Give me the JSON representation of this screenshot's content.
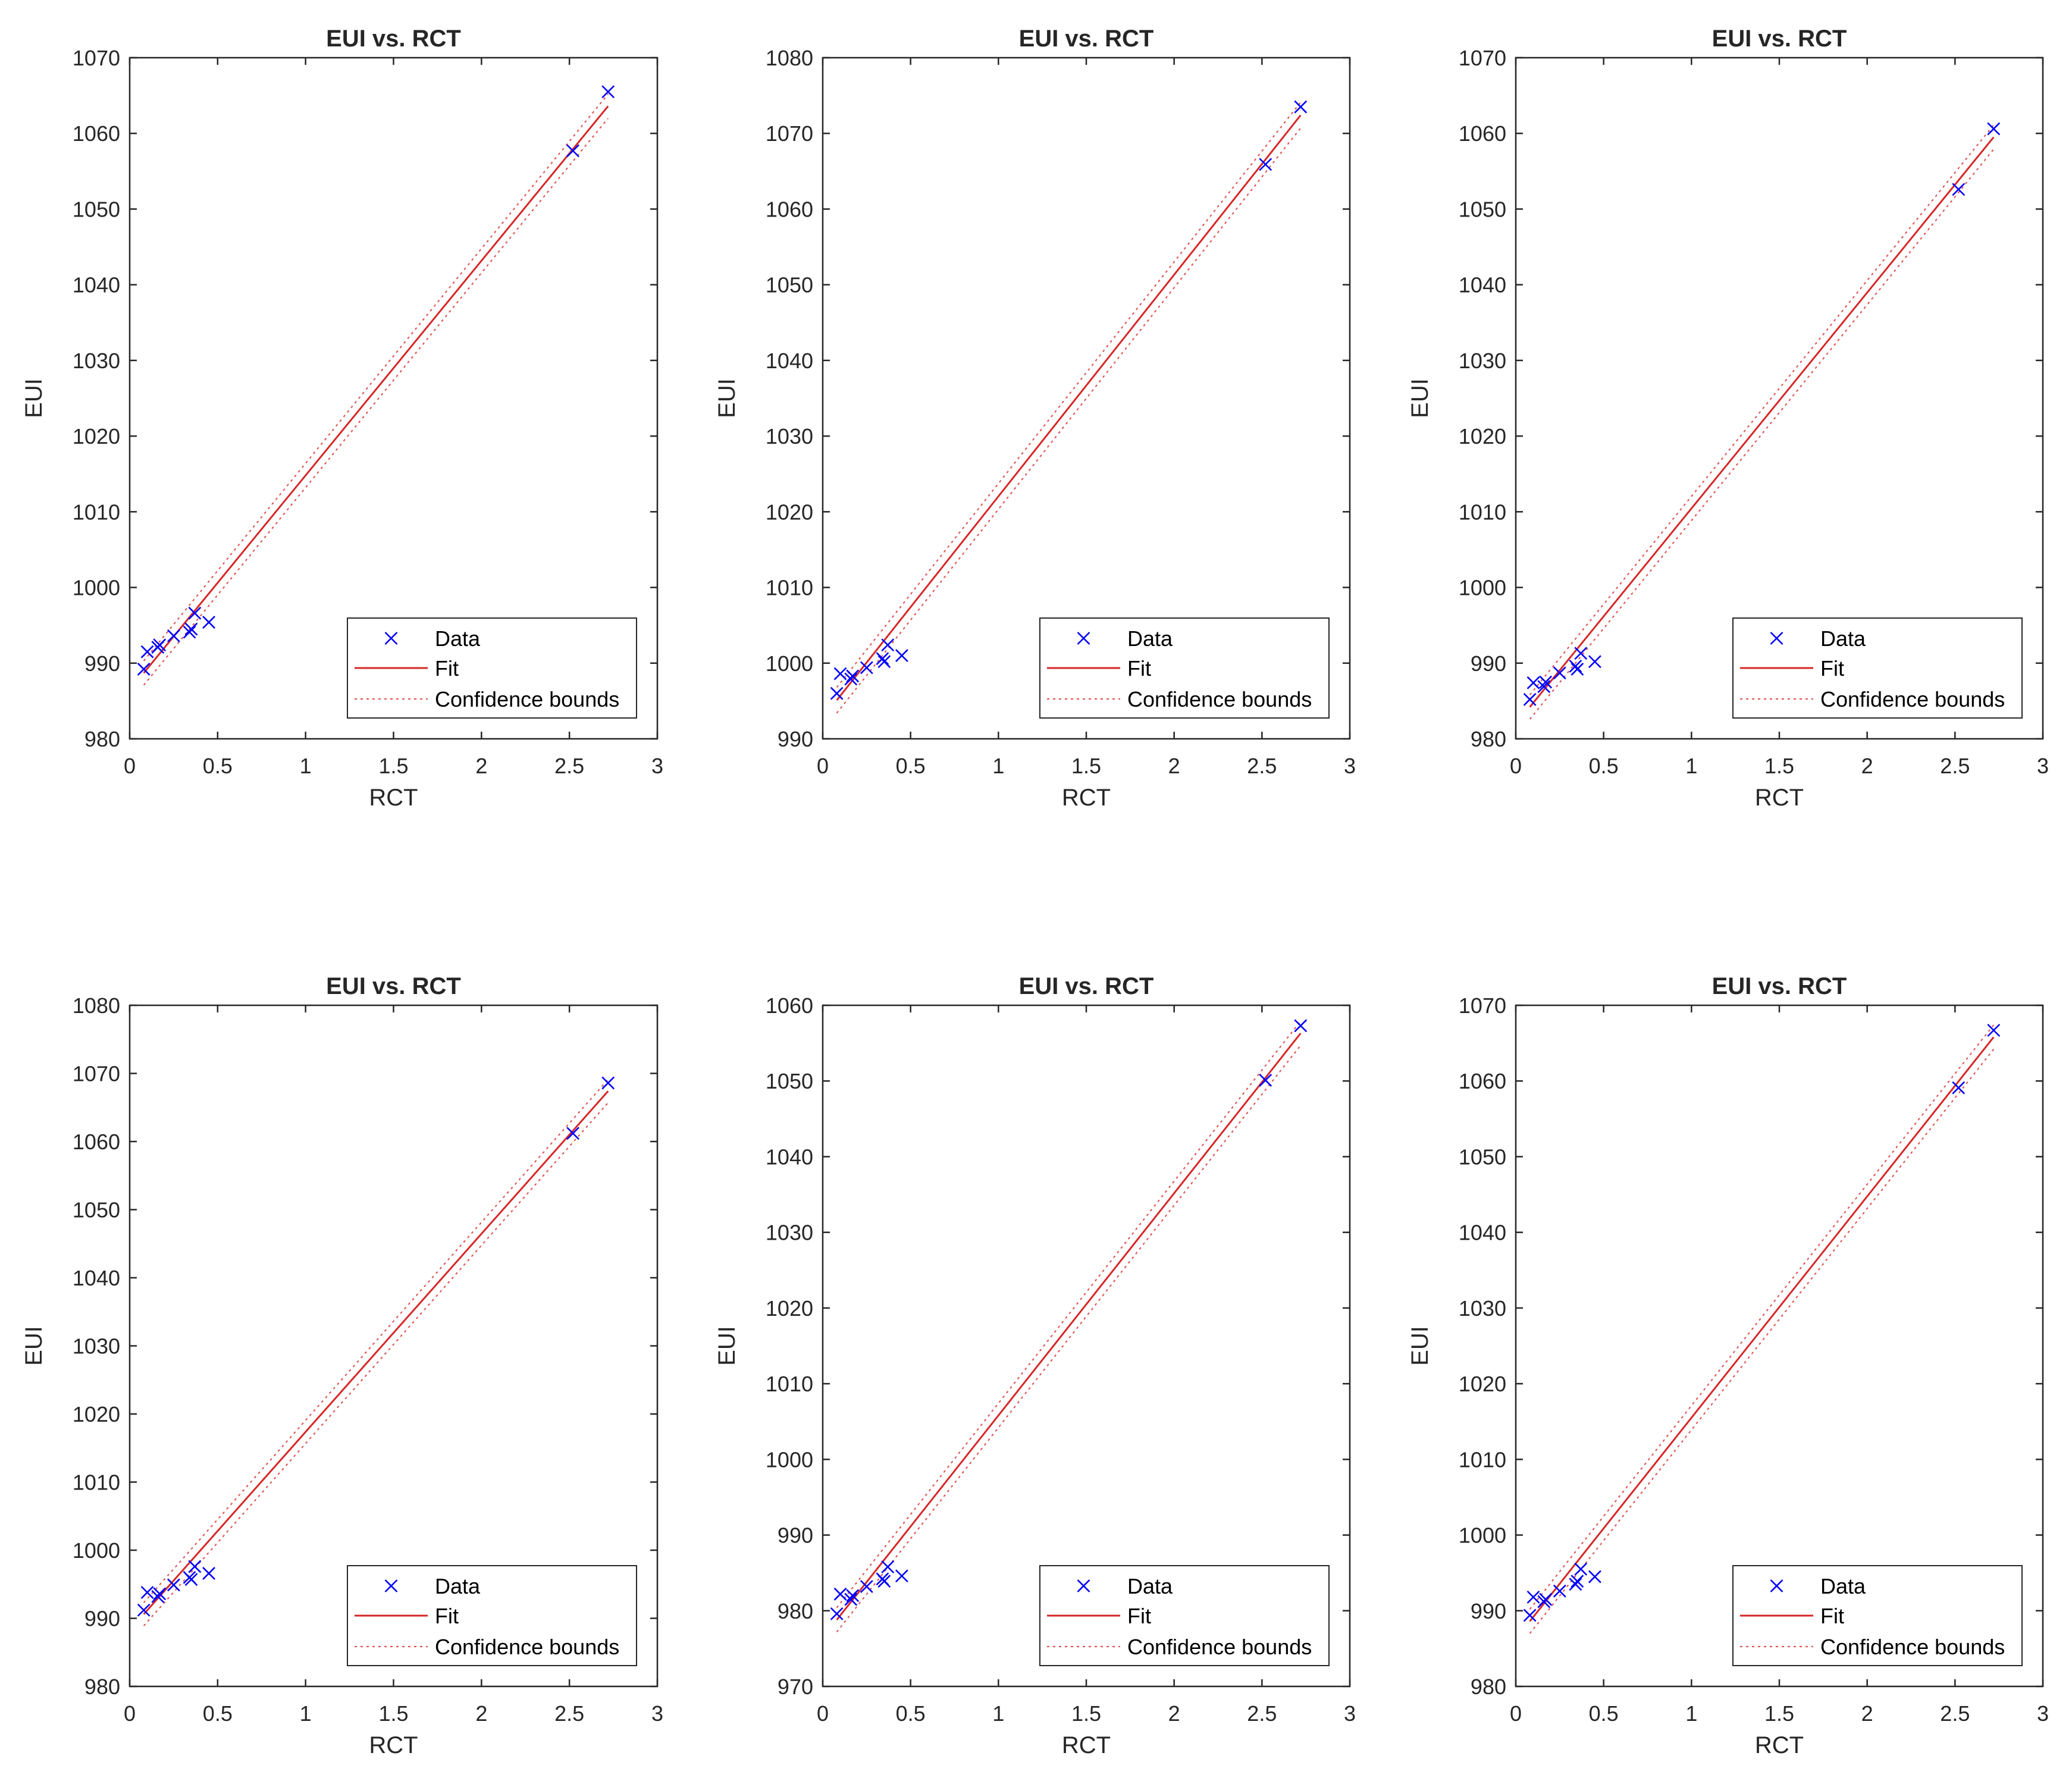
{
  "colors": {
    "data": "#0000ff",
    "fit": "#d62728",
    "bounds": "#e05555",
    "axis": "#262626",
    "background": "#ffffff"
  },
  "chart_data": [
    {
      "type": "scatter",
      "title": "EUI vs. RCT",
      "xlabel": "RCT",
      "ylabel": "EUI",
      "xlim": [
        0,
        3
      ],
      "ylim": [
        980,
        1070
      ],
      "xticks": [
        0,
        0.5,
        1,
        1.5,
        2,
        2.5,
        3
      ],
      "xtick_labels": [
        "0",
        "0.5",
        "1",
        "1.5",
        "2",
        "2.5",
        "3"
      ],
      "yticks": [
        980,
        990,
        1000,
        1010,
        1020,
        1030,
        1040,
        1050,
        1060,
        1070
      ],
      "ytick_labels": [
        "980",
        "990",
        "1000",
        "1010",
        "1020",
        "1030",
        "1040",
        "1050",
        "1060",
        "1070"
      ],
      "legend": [
        "Data",
        "Fit",
        "Confidence bounds"
      ],
      "legend_location": "bottom-right",
      "series": [
        {
          "name": "Data",
          "x": [
            0.08,
            0.1,
            0.16,
            0.17,
            0.25,
            0.34,
            0.35,
            0.37,
            0.45,
            2.52,
            2.72
          ],
          "y": [
            989.2,
            991.5,
            992.1,
            992.4,
            993.6,
            994.1,
            994.5,
            996.6,
            995.4,
            1057.7,
            1065.5
          ]
        },
        {
          "name": "Fit",
          "x": [
            0.08,
            2.72
          ],
          "y": [
            988.7,
            1063.6
          ]
        },
        {
          "name": "Confidence bounds upper",
          "x": [
            0.08,
            2.72
          ],
          "y": [
            990.3,
            1065.2
          ]
        },
        {
          "name": "Confidence bounds lower",
          "x": [
            0.08,
            2.72
          ],
          "y": [
            987.1,
            1062.0
          ]
        }
      ]
    },
    {
      "type": "scatter",
      "title": "EUI vs. RCT",
      "xlabel": "RCT",
      "ylabel": "EUI",
      "xlim": [
        0,
        3
      ],
      "ylim": [
        990,
        1080
      ],
      "xticks": [
        0,
        0.5,
        1,
        1.5,
        2,
        2.5,
        3
      ],
      "xtick_labels": [
        "0",
        "0.5",
        "1",
        "1.5",
        "2",
        "2.5",
        "3"
      ],
      "yticks": [
        990,
        1000,
        1010,
        1020,
        1030,
        1040,
        1050,
        1060,
        1070,
        1080
      ],
      "ytick_labels": [
        "990",
        "1000",
        "1010",
        "1020",
        "1030",
        "1040",
        "1050",
        "1060",
        "1070",
        "1080"
      ],
      "legend": [
        "Data",
        "Fit",
        "Confidence bounds"
      ],
      "legend_location": "bottom-right",
      "series": [
        {
          "name": "Data",
          "x": [
            0.08,
            0.1,
            0.16,
            0.17,
            0.25,
            0.34,
            0.35,
            0.37,
            0.45,
            2.52,
            2.72
          ],
          "y": [
            996.0,
            998.6,
            997.9,
            998.3,
            999.4,
            1000.6,
            1000.2,
            1002.4,
            1001.0,
            1065.9,
            1073.5
          ]
        },
        {
          "name": "Fit",
          "x": [
            0.08,
            2.72
          ],
          "y": [
            995.1,
            1072.4
          ]
        },
        {
          "name": "Confidence bounds upper",
          "x": [
            0.08,
            2.72
          ],
          "y": [
            996.8,
            1074.1
          ]
        },
        {
          "name": "Confidence bounds lower",
          "x": [
            0.08,
            2.72
          ],
          "y": [
            993.4,
            1070.7
          ]
        }
      ]
    },
    {
      "type": "scatter",
      "title": "EUI vs. RCT",
      "xlabel": "RCT",
      "ylabel": "EUI",
      "xlim": [
        0,
        3
      ],
      "ylim": [
        980,
        1070
      ],
      "xticks": [
        0,
        0.5,
        1,
        1.5,
        2,
        2.5,
        3
      ],
      "xtick_labels": [
        "0",
        "0.5",
        "1",
        "1.5",
        "2",
        "2.5",
        "3"
      ],
      "yticks": [
        980,
        990,
        1000,
        1010,
        1020,
        1030,
        1040,
        1050,
        1060,
        1070
      ],
      "ytick_labels": [
        "980",
        "990",
        "1000",
        "1010",
        "1020",
        "1030",
        "1040",
        "1050",
        "1060",
        "1070"
      ],
      "legend": [
        "Data",
        "Fit",
        "Confidence bounds"
      ],
      "legend_location": "bottom-right",
      "series": [
        {
          "name": "Data",
          "x": [
            0.08,
            0.1,
            0.16,
            0.17,
            0.25,
            0.34,
            0.35,
            0.37,
            0.45,
            2.52,
            2.72
          ],
          "y": [
            985.2,
            987.4,
            986.9,
            987.5,
            988.7,
            989.6,
            989.2,
            991.3,
            990.2,
            1052.6,
            1060.6
          ]
        },
        {
          "name": "Fit",
          "x": [
            0.08,
            2.72
          ],
          "y": [
            984.2,
            1059.5
          ]
        },
        {
          "name": "Confidence bounds upper",
          "x": [
            0.08,
            2.72
          ],
          "y": [
            985.8,
            1061.1
          ]
        },
        {
          "name": "Confidence bounds lower",
          "x": [
            0.08,
            2.72
          ],
          "y": [
            982.6,
            1057.9
          ]
        }
      ]
    },
    {
      "type": "scatter",
      "title": "EUI vs. RCT",
      "xlabel": "RCT",
      "ylabel": "EUI",
      "xlim": [
        0,
        3
      ],
      "ylim": [
        980,
        1080
      ],
      "xticks": [
        0,
        0.5,
        1,
        1.5,
        2,
        2.5,
        3
      ],
      "xtick_labels": [
        "0",
        "0.5",
        "1",
        "1.5",
        "2",
        "2.5",
        "3"
      ],
      "yticks": [
        980,
        990,
        1000,
        1010,
        1020,
        1030,
        1040,
        1050,
        1060,
        1070,
        1080
      ],
      "ytick_labels": [
        "980",
        "990",
        "1000",
        "1010",
        "1020",
        "1030",
        "1040",
        "1050",
        "1060",
        "1070",
        "1080"
      ],
      "legend": [
        "Data",
        "Fit",
        "Confidence bounds"
      ],
      "legend_location": "bottom-right",
      "series": [
        {
          "name": "Data",
          "x": [
            0.08,
            0.1,
            0.16,
            0.17,
            0.25,
            0.34,
            0.35,
            0.37,
            0.45,
            2.52,
            2.72
          ],
          "y": [
            991.2,
            993.8,
            993.2,
            993.6,
            994.9,
            996.0,
            995.7,
            997.6,
            996.6,
            1061.2,
            1068.6
          ]
        },
        {
          "name": "Fit",
          "x": [
            0.08,
            2.72
          ],
          "y": [
            990.6,
            1067.4
          ]
        },
        {
          "name": "Confidence bounds upper",
          "x": [
            0.08,
            2.72
          ],
          "y": [
            992.3,
            1069.1
          ]
        },
        {
          "name": "Confidence bounds lower",
          "x": [
            0.08,
            2.72
          ],
          "y": [
            988.9,
            1065.7
          ]
        }
      ]
    },
    {
      "type": "scatter",
      "title": "EUI vs. RCT",
      "xlabel": "RCT",
      "ylabel": "EUI",
      "xlim": [
        0,
        3
      ],
      "ylim": [
        970,
        1060
      ],
      "xticks": [
        0,
        0.5,
        1,
        1.5,
        2,
        2.5,
        3
      ],
      "xtick_labels": [
        "0",
        "0.5",
        "1",
        "1.5",
        "2",
        "2.5",
        "3"
      ],
      "yticks": [
        970,
        980,
        990,
        1000,
        1010,
        1020,
        1030,
        1040,
        1050,
        1060
      ],
      "ytick_labels": [
        "970",
        "980",
        "990",
        "1000",
        "1010",
        "1020",
        "1030",
        "1040",
        "1050",
        "1060"
      ],
      "legend": [
        "Data",
        "Fit",
        "Confidence bounds"
      ],
      "legend_location": "bottom-right",
      "series": [
        {
          "name": "Data",
          "x": [
            0.08,
            0.1,
            0.16,
            0.17,
            0.25,
            0.34,
            0.35,
            0.37,
            0.45,
            2.52,
            2.72
          ],
          "y": [
            979.6,
            982.2,
            981.5,
            982.0,
            983.2,
            984.2,
            983.9,
            985.8,
            984.6,
            1050.1,
            1057.3
          ]
        },
        {
          "name": "Fit",
          "x": [
            0.08,
            2.72
          ],
          "y": [
            978.8,
            1056.3
          ]
        },
        {
          "name": "Confidence bounds upper",
          "x": [
            0.08,
            2.72
          ],
          "y": [
            980.4,
            1057.9
          ]
        },
        {
          "name": "Confidence bounds lower",
          "x": [
            0.08,
            2.72
          ],
          "y": [
            977.2,
            1054.7
          ]
        }
      ]
    },
    {
      "type": "scatter",
      "title": "EUI vs. RCT",
      "xlabel": "RCT",
      "ylabel": "EUI",
      "xlim": [
        0,
        3
      ],
      "ylim": [
        980,
        1070
      ],
      "xticks": [
        0,
        0.5,
        1,
        1.5,
        2,
        2.5,
        3
      ],
      "xtick_labels": [
        "0",
        "0.5",
        "1",
        "1.5",
        "2",
        "2.5",
        "3"
      ],
      "yticks": [
        980,
        990,
        1000,
        1010,
        1020,
        1030,
        1040,
        1050,
        1060,
        1070
      ],
      "ytick_labels": [
        "980",
        "990",
        "1000",
        "1010",
        "1020",
        "1030",
        "1040",
        "1050",
        "1060",
        "1070"
      ],
      "legend": [
        "Data",
        "Fit",
        "Confidence bounds"
      ],
      "legend_location": "bottom-right",
      "series": [
        {
          "name": "Data",
          "x": [
            0.08,
            0.1,
            0.16,
            0.17,
            0.25,
            0.34,
            0.35,
            0.37,
            0.45,
            2.52,
            2.72
          ],
          "y": [
            989.4,
            991.8,
            991.2,
            991.5,
            992.6,
            993.5,
            993.9,
            995.5,
            994.5,
            1059.1,
            1066.7
          ]
        },
        {
          "name": "Fit",
          "x": [
            0.08,
            2.72
          ],
          "y": [
            988.6,
            1065.8
          ]
        },
        {
          "name": "Confidence bounds upper",
          "x": [
            0.08,
            2.72
          ],
          "y": [
            990.2,
            1067.4
          ]
        },
        {
          "name": "Confidence bounds lower",
          "x": [
            0.08,
            2.72
          ],
          "y": [
            987.0,
            1064.2
          ]
        }
      ]
    }
  ]
}
